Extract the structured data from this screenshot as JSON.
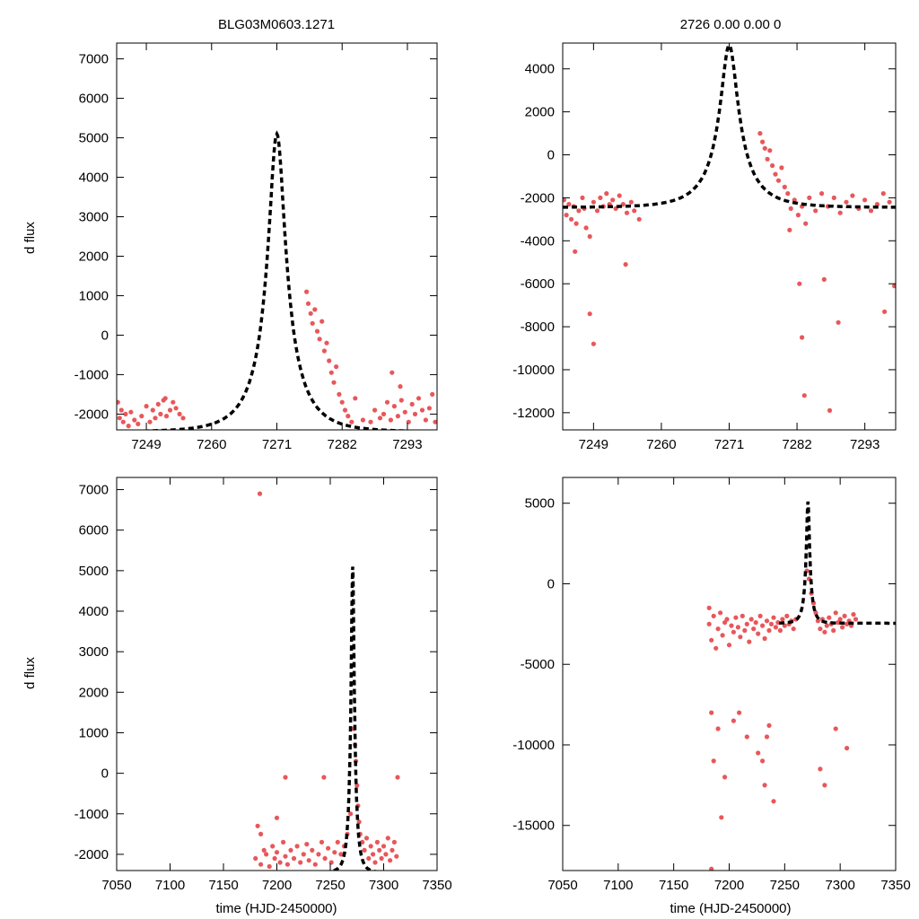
{
  "colors": {
    "points": "#e8575a",
    "fit": "#000000"
  },
  "panels_text": {
    "title_left": "BLG03M0603.1271",
    "title_right": "2726  0.00  0.00  0",
    "ylabel": "d flux",
    "xlabel": "time (HJD-2450000)"
  },
  "chart_data": [
    {
      "id": "tl",
      "type": "scatter",
      "title": "BLG03M0603.1271",
      "ylabel": "d flux",
      "xlabel": "",
      "xlim": [
        7244,
        7298
      ],
      "ylim": [
        -2400,
        7400
      ],
      "xticks": [
        7249,
        7260,
        7271,
        7282,
        7293
      ],
      "yticks": [
        -2000,
        -1000,
        0,
        1000,
        2000,
        3000,
        4000,
        5000,
        6000,
        7000
      ],
      "fit": {
        "t0": 7271,
        "peak": 5100,
        "base": -2450,
        "u0": 0.22,
        "tE": 6.5
      },
      "series": [
        {
          "name": "observations",
          "x": [
            7244.2,
            7244.5,
            7244.8,
            7245.1,
            7245.5,
            7246.0,
            7246.4,
            7247.0,
            7247.6,
            7248.2,
            7249.0,
            7250.1,
            7250.5,
            7251.0,
            7251.4,
            7251.9,
            7252.4,
            7253.0,
            7253.5,
            7254.0,
            7254.6,
            7255.2,
            7249.6,
            7252.2,
            7276.0,
            7276.3,
            7276.7,
            7277.0,
            7277.4,
            7277.8,
            7278.2,
            7278.6,
            7279.0,
            7279.4,
            7279.8,
            7280.2,
            7280.6,
            7281.0,
            7281.5,
            7282.0,
            7282.5,
            7283.0,
            7283.6,
            7284.2,
            7285.5,
            7286.8,
            7287.5,
            7288.4,
            7289.0,
            7289.6,
            7290.2,
            7290.8,
            7291.4,
            7292.0,
            7292.6,
            7293.2,
            7293.8,
            7294.3,
            7294.9,
            7295.5,
            7296.1,
            7296.7,
            7297.2,
            7297.7,
            7291.8,
            7290.4
          ],
          "y": [
            -1700,
            -2100,
            -1900,
            -2200,
            -2000,
            -2300,
            -1950,
            -2150,
            -2250,
            -2050,
            -1800,
            -1900,
            -2100,
            -1750,
            -2000,
            -1650,
            -2050,
            -1900,
            -1700,
            -1850,
            -2000,
            -2100,
            -2200,
            -1600,
            1100,
            800,
            550,
            300,
            650,
            100,
            -100,
            350,
            -400,
            -200,
            -650,
            -950,
            -1200,
            -800,
            -1500,
            -1700,
            -1900,
            -2050,
            -2200,
            -1600,
            -2150,
            -2200,
            -1900,
            -2100,
            -2000,
            -1700,
            -2150,
            -1800,
            -2050,
            -1650,
            -1950,
            -2200,
            -1750,
            -2000,
            -1600,
            -1900,
            -2150,
            -1850,
            -1500,
            -2200,
            -1300,
            -950
          ]
        }
      ]
    },
    {
      "id": "tr",
      "type": "scatter",
      "title": "2726  0.00  0.00  0",
      "ylabel": "",
      "xlabel": "",
      "xlim": [
        7244,
        7298
      ],
      "ylim": [
        -12800,
        5200
      ],
      "xticks": [
        7249,
        7260,
        7271,
        7282,
        7293
      ],
      "yticks": [
        -12000,
        -10000,
        -8000,
        -6000,
        -4000,
        -2000,
        0,
        2000,
        4000
      ],
      "fit": {
        "t0": 7271,
        "peak": 5100,
        "base": -2450,
        "u0": 0.22,
        "tE": 6.5
      },
      "series": [
        {
          "name": "observations",
          "x": [
            7244.2,
            7244.6,
            7245.0,
            7245.4,
            7245.8,
            7246.2,
            7246.6,
            7247.2,
            7247.5,
            7247.8,
            7248.4,
            7249.0,
            7249.6,
            7250.1,
            7250.6,
            7251.1,
            7251.6,
            7252.1,
            7252.6,
            7253.2,
            7253.8,
            7254.4,
            7255.1,
            7255.6,
            7256.4,
            7246.0,
            7248.4,
            7249.0,
            7254.2,
            7276.0,
            7276.4,
            7276.8,
            7277.2,
            7277.6,
            7278.0,
            7278.5,
            7279.0,
            7279.5,
            7280.0,
            7280.5,
            7281.0,
            7281.6,
            7282.2,
            7282.8,
            7283.4,
            7284.0,
            7285.0,
            7286.0,
            7287.0,
            7288.0,
            7289.0,
            7290.0,
            7291.0,
            7292.0,
            7293.0,
            7294.0,
            7295.0,
            7296.0,
            7297.0,
            7282.4,
            7282.8,
            7283.2,
            7286.4,
            7287.3,
            7288.7,
            7280.8,
            7296.2,
            7297.8
          ],
          "y": [
            -2100,
            -2800,
            -2300,
            -3000,
            -2400,
            -3200,
            -2600,
            -2000,
            -2500,
            -3400,
            -3800,
            -2200,
            -2600,
            -2000,
            -2400,
            -1800,
            -2300,
            -2100,
            -2500,
            -1900,
            -2300,
            -2700,
            -2200,
            -2600,
            -3000,
            -4500,
            -7400,
            -8800,
            -5100,
            1000,
            600,
            300,
            -200,
            200,
            -500,
            -900,
            -1200,
            -600,
            -1500,
            -1800,
            -2500,
            -2100,
            -2800,
            -2400,
            -3200,
            -2000,
            -2600,
            -1800,
            -2400,
            -2000,
            -2700,
            -2200,
            -1900,
            -2500,
            -2100,
            -2600,
            -2300,
            -1800,
            -2200,
            -6000,
            -8500,
            -11200,
            -5800,
            -11900,
            -7800,
            -3500,
            -7300,
            -6100
          ]
        }
      ]
    },
    {
      "id": "bl",
      "type": "scatter",
      "title": "",
      "ylabel": "d flux",
      "xlabel": "time (HJD-2450000)",
      "xlim": [
        7050,
        7350
      ],
      "ylim": [
        -2400,
        7300
      ],
      "xticks": [
        7050,
        7100,
        7150,
        7200,
        7250,
        7300,
        7350
      ],
      "yticks": [
        -2000,
        -1000,
        0,
        1000,
        2000,
        3000,
        4000,
        5000,
        6000,
        7000
      ],
      "fit": {
        "t0": 7271,
        "peak": 5100,
        "base": -2450,
        "u0": 0.22,
        "tE": 6.5
      },
      "series": [
        {
          "name": "observations",
          "x": [
            7180,
            7182,
            7185,
            7188,
            7190,
            7193,
            7196,
            7198,
            7200,
            7203,
            7206,
            7208,
            7210,
            7213,
            7216,
            7219,
            7222,
            7225,
            7228,
            7230,
            7233,
            7236,
            7239,
            7242,
            7245,
            7248,
            7251,
            7254,
            7257,
            7260,
            7263,
            7266,
            7269,
            7272,
            7273,
            7274,
            7275,
            7276,
            7277,
            7278,
            7280,
            7282,
            7284,
            7286,
            7288,
            7290,
            7292,
            7294,
            7296,
            7298,
            7300,
            7302,
            7304,
            7306,
            7308,
            7310,
            7312,
            7184,
            7208,
            7244,
            7313,
            7185,
            7200
          ],
          "y": [
            -2100,
            -1300,
            -2250,
            -1900,
            -2000,
            -2300,
            -1800,
            -2100,
            -1950,
            -2200,
            -1700,
            -2050,
            -2250,
            -1900,
            -2100,
            -1800,
            -2200,
            -2000,
            -1750,
            -2150,
            -1900,
            -2250,
            -2000,
            -1700,
            -2100,
            -1850,
            -2200,
            -1950,
            -1700,
            -2000,
            -1800,
            -1500,
            -1000,
            1100,
            700,
            300,
            -300,
            -800,
            -1200,
            -1500,
            -1700,
            -1900,
            -1600,
            -2100,
            -1800,
            -2000,
            -2200,
            -1700,
            -1900,
            -2100,
            -1800,
            -2000,
            -1600,
            -2150,
            -1900,
            -1700,
            -2050,
            6900,
            -100,
            -100,
            -100,
            -1500,
            -1100
          ]
        }
      ]
    },
    {
      "id": "br",
      "type": "scatter",
      "title": "",
      "ylabel": "",
      "xlabel": "time (HJD-2450000)",
      "xlim": [
        7050,
        7350
      ],
      "ylim": [
        -17800,
        6600
      ],
      "xticks": [
        7050,
        7100,
        7150,
        7200,
        7250,
        7300,
        7350
      ],
      "yticks": [
        -15000,
        -10000,
        -5000,
        0,
        5000
      ],
      "fit": {
        "t0": 7271,
        "peak": 5100,
        "base": -2450,
        "u0": 0.22,
        "tE": 6.5
      },
      "series": [
        {
          "name": "observations",
          "x": [
            7182,
            7184,
            7186,
            7188,
            7190,
            7192,
            7194,
            7196,
            7198,
            7200,
            7202,
            7204,
            7206,
            7208,
            7210,
            7212,
            7214,
            7216,
            7218,
            7220,
            7222,
            7224,
            7226,
            7228,
            7230,
            7232,
            7234,
            7236,
            7238,
            7240,
            7242,
            7244,
            7246,
            7248,
            7250,
            7252,
            7254,
            7256,
            7258,
            7260,
            7270,
            7272,
            7274,
            7276,
            7278,
            7280,
            7282,
            7284,
            7286,
            7288,
            7290,
            7292,
            7294,
            7296,
            7298,
            7300,
            7302,
            7304,
            7306,
            7308,
            7310,
            7312,
            7314,
            7184,
            7186,
            7190,
            7196,
            7204,
            7216,
            7226,
            7232,
            7236,
            7240,
            7282,
            7286,
            7296,
            7306,
            7184,
            7193,
            7182,
            7209,
            7230,
            7234
          ],
          "y": [
            -2500,
            -3500,
            -2000,
            -4000,
            -2800,
            -1800,
            -3200,
            -2400,
            -2200,
            -3800,
            -2600,
            -3000,
            -2100,
            -2700,
            -3300,
            -2000,
            -2900,
            -2500,
            -3600,
            -2200,
            -2800,
            -2400,
            -3100,
            -2000,
            -2600,
            -3400,
            -2300,
            -2900,
            -2500,
            -2100,
            -2700,
            -2400,
            -2900,
            -2200,
            -2600,
            -2000,
            -2500,
            -2300,
            -2800,
            -2200,
            800,
            300,
            -600,
            -1200,
            -1800,
            -2300,
            -2800,
            -2200,
            -3000,
            -2600,
            -2100,
            -2500,
            -2900,
            -1800,
            -2400,
            -2200,
            -2700,
            -2000,
            -2500,
            -2300,
            -2600,
            -1900,
            -2200,
            -8000,
            -11000,
            -9000,
            -12000,
            -8500,
            -9500,
            -10500,
            -12500,
            -8800,
            -13500,
            -11500,
            -12500,
            -9000,
            -10200,
            -17700,
            -14500,
            -1500,
            -8000,
            -11000,
            -9500
          ]
        }
      ]
    }
  ]
}
